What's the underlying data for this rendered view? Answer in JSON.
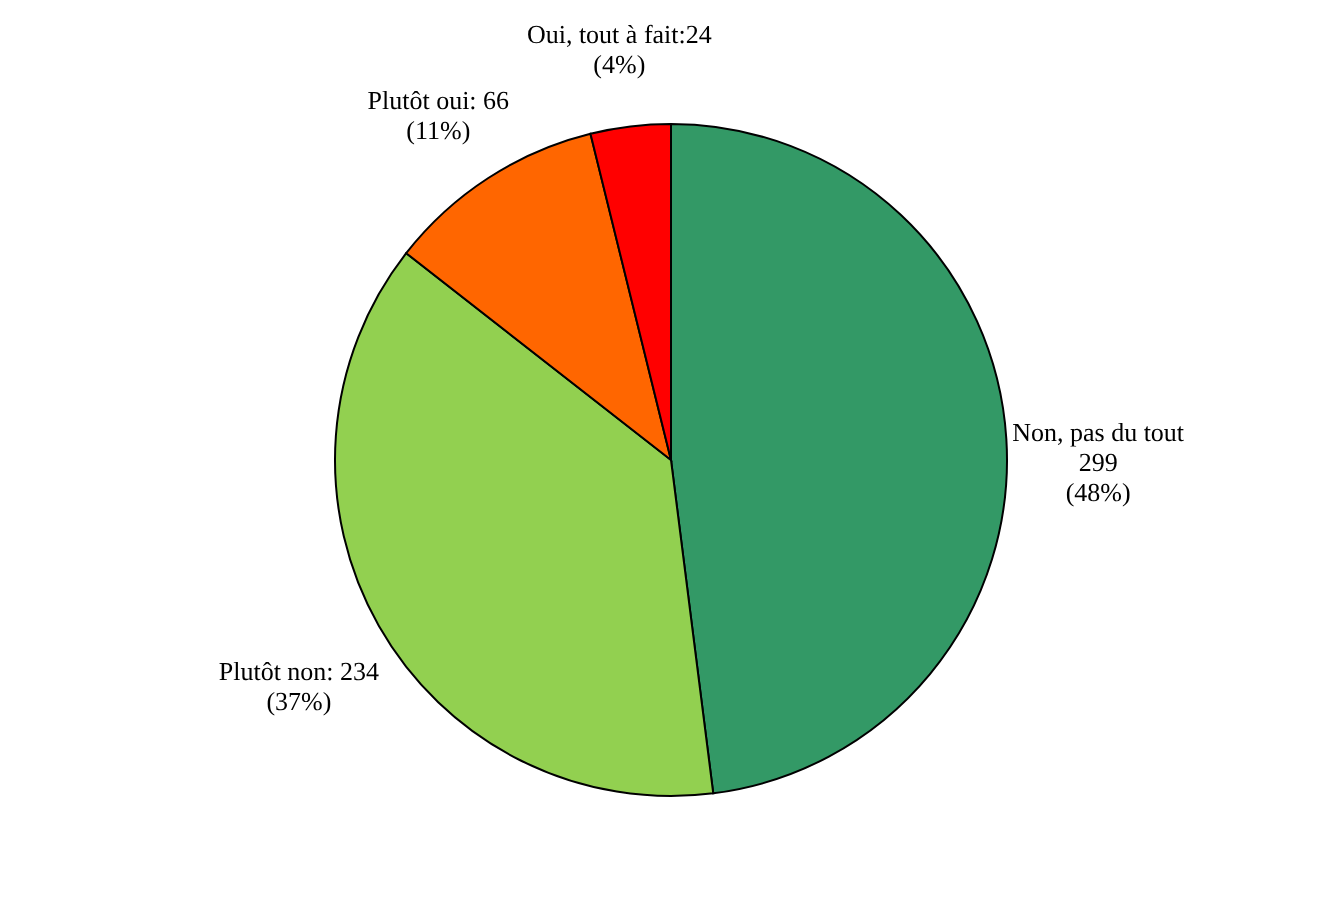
{
  "chart_data": {
    "type": "pie",
    "categories": [
      "Non, pas du tout",
      "Plutôt non",
      "Plutôt oui",
      "Oui, tout à fait"
    ],
    "values": [
      299,
      234,
      66,
      24
    ],
    "colors": [
      "#339966",
      "#92d050",
      "#ff6600",
      "#ff0000"
    ],
    "value_labels": [
      "\n299\n(48%)",
      ": 234\n(37%)",
      ": 66\n(11%)",
      ":24\n(4%)"
    ]
  }
}
